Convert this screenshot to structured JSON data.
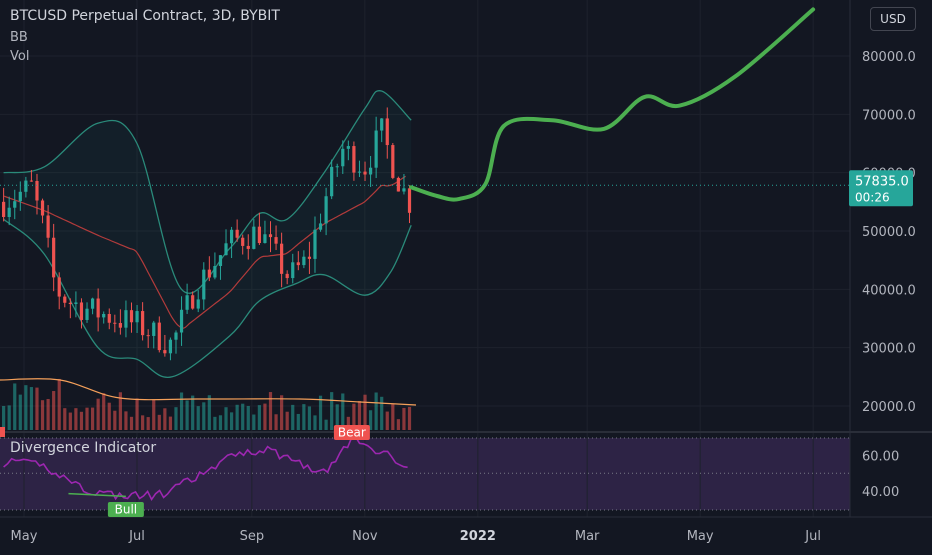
{
  "header": {
    "title": "BTCUSD Perpetual Contract, 3D, BYBIT",
    "indicators": [
      "BB",
      "Vol"
    ]
  },
  "currency_button": "USD",
  "price_badge": {
    "price": "57835.0",
    "countdown": "00:26"
  },
  "divergence": {
    "title": "Divergence Indicator",
    "bull_label": "Bull",
    "bear_label": "Bear"
  },
  "colors": {
    "background": "#131722",
    "bull_candle": "#26a69a",
    "bear_candle": "#ef5350",
    "bb_band": "#2a8a7a",
    "bb_basis": "#b23b3b",
    "forecast_line": "#4caf50",
    "volume_ma": "#f5a05a",
    "rsi_line": "#9c27b0",
    "price_badge": "#26a69a"
  },
  "chart_data": [
    {
      "type": "line",
      "subtype": "candlestick-with-forecast",
      "title": "BTCUSD Perpetual Contract, 3D, BYBIT",
      "y_axis_ticks": [
        20000,
        30000,
        40000,
        50000,
        60000,
        70000,
        80000
      ],
      "x_axis_ticks": [
        "May",
        "Jul",
        "Sep",
        "Nov",
        "2022",
        "Mar",
        "May",
        "Jul"
      ],
      "last_price": 57835.0,
      "price_series": {
        "x": [
          "2021-04-20",
          "2021-05-05",
          "2021-05-12",
          "2021-05-18",
          "2021-05-25",
          "2021-06-05",
          "2021-06-20",
          "2021-07-01",
          "2021-07-20",
          "2021-08-01",
          "2021-08-20",
          "2021-09-05",
          "2021-09-21",
          "2021-10-01",
          "2021-10-10",
          "2021-10-20",
          "2021-11-01",
          "2021-11-10",
          "2021-11-20",
          "2021-11-26"
        ],
        "close": [
          55000,
          57500,
          50000,
          40000,
          38000,
          36500,
          35000,
          34000,
          30500,
          40000,
          48000,
          50000,
          42000,
          45000,
          55000,
          64000,
          61000,
          67000,
          58000,
          54500
        ]
      },
      "bb_upper": {
        "x": [
          "2021-04-20",
          "2021-05-12",
          "2021-06-10",
          "2021-07-01",
          "2021-07-25",
          "2021-08-20",
          "2021-09-05",
          "2021-09-20",
          "2021-10-10",
          "2021-11-01",
          "2021-11-10",
          "2021-11-26"
        ],
        "y": [
          60000,
          61000,
          68500,
          65000,
          40000,
          47000,
          53000,
          52000,
          60000,
          71000,
          74000,
          69000
        ]
      },
      "bb_lower": {
        "x": [
          "2021-04-20",
          "2021-05-12",
          "2021-06-10",
          "2021-07-01",
          "2021-07-20",
          "2021-08-20",
          "2021-09-05",
          "2021-09-25",
          "2021-10-10",
          "2021-11-01",
          "2021-11-15",
          "2021-11-26"
        ],
        "y": [
          52000,
          46000,
          30000,
          28000,
          25000,
          32000,
          38000,
          41000,
          42500,
          39000,
          43000,
          51000
        ]
      },
      "forecast": {
        "x": [
          "2021-11-26",
          "2021-12-10",
          "2021-12-22",
          "2022-01-05",
          "2022-01-15",
          "2022-02-10",
          "2022-03-10",
          "2022-04-01",
          "2022-04-20",
          "2022-05-20",
          "2022-07-01"
        ],
        "y": [
          57500,
          56000,
          55500,
          58000,
          68000,
          69000,
          67500,
          73000,
          71500,
          76500,
          88000
        ]
      }
    },
    {
      "type": "line",
      "subtype": "divergence-oscillator",
      "title": "Divergence Indicator",
      "y_axis_ticks": [
        40,
        60
      ],
      "x": [
        "2021-04-20",
        "2021-05-10",
        "2021-06-05",
        "2021-06-25",
        "2021-07-15",
        "2021-08-10",
        "2021-08-25",
        "2021-09-10",
        "2021-09-25",
        "2021-10-10",
        "2021-10-25",
        "2021-11-10",
        "2021-11-26"
      ],
      "y": [
        56,
        55,
        40,
        37,
        38,
        52,
        62,
        63,
        57,
        50,
        69,
        62,
        54
      ],
      "annotations": [
        {
          "label": "Bull",
          "x": "2021-06-25"
        },
        {
          "label": "Bear",
          "x": "2021-10-25"
        }
      ]
    }
  ]
}
